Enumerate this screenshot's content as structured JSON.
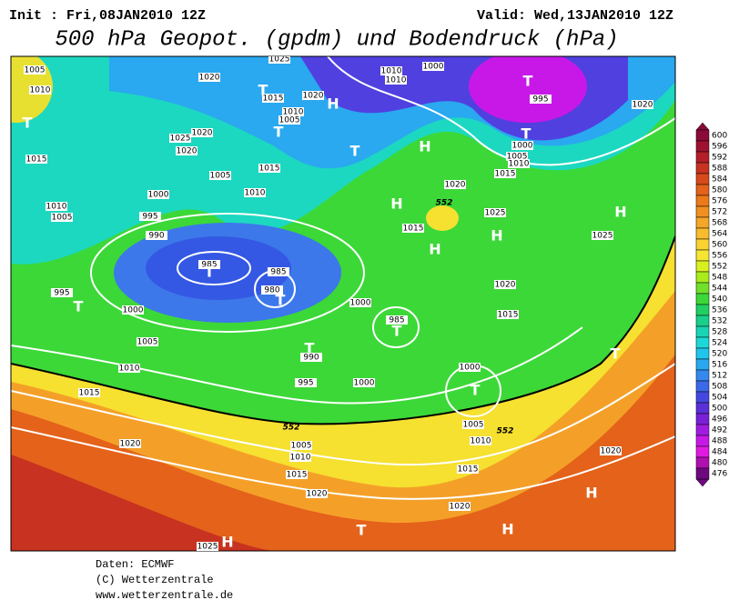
{
  "header": {
    "init": "Init : Fri,08JAN2010 12Z",
    "valid": "Valid: Wed,13JAN2010 12Z",
    "title": "500 hPa Geopot. (gpdm) und Bodendruck (hPa)"
  },
  "map": {
    "pressure_labels": [
      1005,
      1010,
      1015,
      1020,
      1025,
      1015,
      1020,
      1010,
      1005,
      1025,
      1020,
      1020,
      1005,
      1015,
      1010,
      1000,
      1010,
      1005,
      995,
      990,
      985,
      985,
      980,
      995,
      1000,
      1005,
      1010,
      1015,
      1010,
      1010,
      1000,
      995,
      1000,
      1005,
      1010,
      1015,
      1020,
      1025,
      1025,
      1020,
      1015,
      1000,
      985,
      1020,
      1015,
      990,
      995,
      1000,
      1000,
      1005,
      1010,
      1015,
      1020,
      1005,
      1010,
      1015,
      1020,
      1020,
      1020,
      1025
    ],
    "geopot_labels": [
      552,
      552,
      552
    ],
    "markers": [
      "T",
      "T",
      "T",
      "T",
      "T",
      "H",
      "H",
      "H",
      "H",
      "H",
      "H",
      "T",
      "T",
      "T",
      "T",
      "T",
      "T",
      "T",
      "H",
      "H",
      "T",
      "H",
      "T"
    ]
  },
  "legend": {
    "ticks": [
      600,
      596,
      592,
      588,
      584,
      580,
      576,
      572,
      568,
      564,
      560,
      556,
      552,
      548,
      544,
      540,
      536,
      532,
      528,
      524,
      520,
      516,
      512,
      508,
      504,
      500,
      496,
      492,
      488,
      484,
      480,
      476
    ],
    "colors": [
      "#8b0a3a",
      "#a01030",
      "#b41e28",
      "#c83220",
      "#d84a1a",
      "#e4621a",
      "#ec7a1a",
      "#f09020",
      "#f4a628",
      "#f8bc2c",
      "#fad232",
      "#f6e632",
      "#d8f020",
      "#a8ec1c",
      "#70e02a",
      "#3cd838",
      "#20d060",
      "#18d08c",
      "#18d4b4",
      "#1cd8d8",
      "#20c4ec",
      "#2aa8f0",
      "#3488ee",
      "#3c68ea",
      "#4448e0",
      "#5a30d8",
      "#7a20d8",
      "#a01ce0",
      "#c818e8",
      "#e01ae0",
      "#b010b0",
      "#700880"
    ]
  },
  "footer": {
    "lines": [
      "Daten: ECMWF",
      "(C) Wetterzentrale",
      "www.wetterzentrale.de"
    ]
  }
}
